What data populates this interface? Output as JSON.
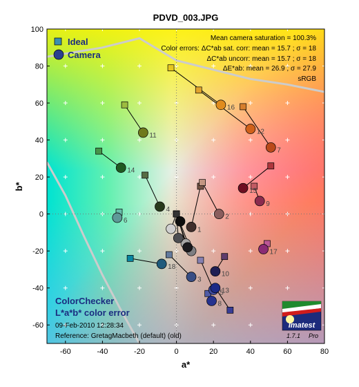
{
  "colors": {
    "frame": "#000000",
    "legend_ideal": "#3a8fb0",
    "legend_camera": "#2a3f8f",
    "connector": "#000000",
    "curve": "#cccccc"
  },
  "logo": {
    "text": "Imatest",
    "version": "1.7.1",
    "edition": "Pro"
  },
  "chart_data": {
    "type": "scatter",
    "title": "PDVD_003.JPG",
    "xlabel": "a*",
    "ylabel": "b*",
    "xlim": [
      -70,
      80
    ],
    "ylim": [
      -70,
      100
    ],
    "xticks": [
      -60,
      -40,
      -20,
      0,
      20,
      40,
      60,
      80
    ],
    "yticks": [
      -60,
      -40,
      -20,
      0,
      20,
      40,
      60,
      80,
      100
    ],
    "legend": {
      "position": "top-left",
      "entries": [
        "Ideal",
        "Camera"
      ]
    },
    "stats": [
      "Mean camera saturation = 100.3%",
      "Color errors: ΔC*ab sat. corr:  mean = 15.7 ;  σ = 18",
      "ΔC*ab uncorr:  mean = 15.7 ;  σ = 18",
      "ΔE*ab:  mean = 26.9 ;  σ = 27.9",
      "sRGB"
    ],
    "annotation": {
      "heading1": "ColorChecker",
      "heading2": "L*a*b* color error",
      "date": "09-Feb-2010 12:28:34",
      "reference": "Reference: GretagMacbeth (default) (old)"
    },
    "patches": [
      {
        "id": 1,
        "label": "1",
        "ideal": [
          13,
          15
        ],
        "camera": [
          8,
          -7
        ],
        "ideal_color": "#735244",
        "camera_color": "#402e2b"
      },
      {
        "id": 2,
        "label": "2",
        "ideal": [
          14,
          17
        ],
        "camera": [
          23,
          0
        ],
        "ideal_color": "#c29682",
        "camera_color": "#8a5d5d"
      },
      {
        "id": 3,
        "label": "3",
        "ideal": [
          -4,
          -22
        ],
        "camera": [
          8,
          -34
        ],
        "ideal_color": "#627a9d",
        "camera_color": "#384d84"
      },
      {
        "id": 4,
        "label": "4",
        "ideal": [
          -17,
          21
        ],
        "camera": [
          -9,
          4
        ],
        "ideal_color": "#576c43",
        "camera_color": "#283a1c"
      },
      {
        "id": 5,
        "label": "5",
        "ideal": [
          13,
          -25
        ],
        "camera": [
          20,
          -41
        ],
        "ideal_color": "#8580b1",
        "camera_color": "#3e4b9f"
      },
      {
        "id": 6,
        "label": "6",
        "ideal": [
          -31,
          1
        ],
        "camera": [
          -32,
          -2
        ],
        "ideal_color": "#67bdaa",
        "camera_color": "#5e9a98"
      },
      {
        "id": 7,
        "label": "7",
        "ideal": [
          36,
          58
        ],
        "camera": [
          51,
          36
        ],
        "ideal_color": "#d67e2c",
        "camera_color": "#bb4a1a"
      },
      {
        "id": 8,
        "label": "8",
        "ideal": [
          17,
          -43
        ],
        "camera": [
          19,
          -47
        ],
        "ideal_color": "#505ba6",
        "camera_color": "#27338f"
      },
      {
        "id": 9,
        "label": "9",
        "ideal": [
          42,
          15
        ],
        "camera": [
          45,
          7
        ],
        "ideal_color": "#c15a63",
        "camera_color": "#8c2b4e"
      },
      {
        "id": 10,
        "label": "10",
        "ideal": [
          26,
          -23
        ],
        "camera": [
          21,
          -31
        ],
        "ideal_color": "#5e3c6c",
        "camera_color": "#1f1f54"
      },
      {
        "id": 11,
        "label": "11",
        "ideal": [
          -28,
          59
        ],
        "camera": [
          -18,
          44
        ],
        "ideal_color": "#9dbc40",
        "camera_color": "#6f7a1c"
      },
      {
        "id": 12,
        "label": "12",
        "ideal": [
          12,
          67
        ],
        "camera": [
          40,
          46
        ],
        "ideal_color": "#e0a32e",
        "camera_color": "#d0611a"
      },
      {
        "id": 13,
        "label": "13",
        "ideal": [
          29,
          -52
        ],
        "camera": [
          21,
          -40
        ],
        "ideal_color": "#383d96",
        "camera_color": "#1c2a86"
      },
      {
        "id": 14,
        "label": "14",
        "ideal": [
          -42,
          34
        ],
        "camera": [
          -30,
          25
        ],
        "ideal_color": "#469449",
        "camera_color": "#1f5a22"
      },
      {
        "id": 15,
        "label": "15",
        "ideal": [
          51,
          26
        ],
        "camera": [
          36,
          14
        ],
        "ideal_color": "#af363c",
        "camera_color": "#6e0f22"
      },
      {
        "id": 16,
        "label": "16",
        "ideal": [
          -3,
          79
        ],
        "camera": [
          24,
          59
        ],
        "ideal_color": "#e7c71f",
        "camera_color": "#e08c1e"
      },
      {
        "id": 17,
        "label": "17",
        "ideal": [
          49,
          -16
        ],
        "camera": [
          47,
          -19
        ],
        "ideal_color": "#bb5695",
        "camera_color": "#8a2b74"
      },
      {
        "id": 18,
        "label": "18",
        "ideal": [
          -25,
          -24
        ],
        "camera": [
          -8,
          -27
        ],
        "ideal_color": "#0885a1",
        "camera_color": "#1f5b7c"
      },
      {
        "id": 19,
        "label": "",
        "ideal": [
          0,
          0
        ],
        "camera": [
          -3,
          -8
        ],
        "ideal_color": "#f3f3f2",
        "camera_color": "#d0d0d0"
      },
      {
        "id": 20,
        "label": "",
        "ideal": [
          0,
          0
        ],
        "camera": [
          5,
          -16
        ],
        "ideal_color": "#c8c8c8",
        "camera_color": "#a5a5a5"
      },
      {
        "id": 21,
        "label": "",
        "ideal": [
          0,
          0
        ],
        "camera": [
          8,
          -20
        ],
        "ideal_color": "#a0a0a0",
        "camera_color": "#7e7e82"
      },
      {
        "id": 22,
        "label": "",
        "ideal": [
          0,
          0
        ],
        "camera": [
          1,
          -13
        ],
        "ideal_color": "#7a7a79",
        "camera_color": "#4e4e52"
      },
      {
        "id": 23,
        "label": "",
        "ideal": [
          0,
          0
        ],
        "camera": [
          2,
          -4
        ],
        "ideal_color": "#555555",
        "camera_color": "#0e0e0e"
      },
      {
        "id": 24,
        "label": "",
        "ideal": [
          0,
          0
        ],
        "camera": [
          6,
          -18
        ],
        "ideal_color": "#343434",
        "camera_color": "#1a1a1e"
      }
    ]
  }
}
